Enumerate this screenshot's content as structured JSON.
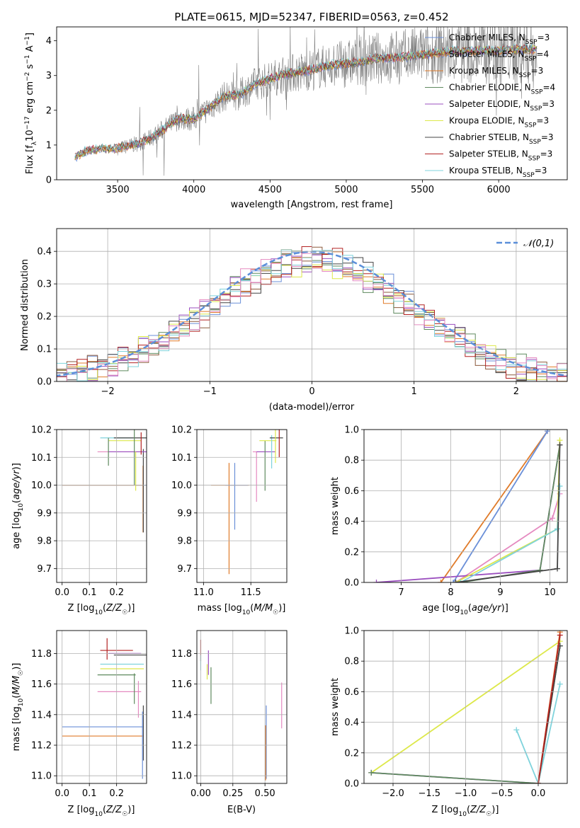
{
  "figure_title": "PLATE=0615, MJD=52347, FIBERID=0563, z=0.452",
  "colors": {
    "Chabrier MILES": "#6a8fd8",
    "Salpeter MILES": "#8c5a3c",
    "Kroupa MILES": "#e07b2a",
    "Chabrier ELODIE": "#5f8a5f",
    "Salpeter ELODIE": "#9b4fbf",
    "Kroupa ELODIE": "#dde84a",
    "Chabrier STELIB": "#444444",
    "Salpeter STELIB": "#b22222",
    "Kroupa STELIB": "#7fd3dc",
    "data": "#808080",
    "gaussian": "#5b8fd9",
    "pink": "#e58ac0"
  },
  "chart_data": [
    {
      "id": "spectrum",
      "type": "line",
      "xlabel": "wavelength [Angstrom, rest frame]",
      "ylabel": "Flux [f_λ 10^-17 erg cm^-2 s^-1 A^-1]",
      "xlim": [
        3100,
        6450
      ],
      "ylim": [
        0,
        4.4
      ],
      "xticks": [
        3500,
        4000,
        4500,
        5000,
        5500,
        6000
      ],
      "yticks": [
        0,
        1,
        2,
        3,
        4
      ],
      "model_anchor_points": {
        "x": [
          3220,
          3300,
          3400,
          3500,
          3600,
          3700,
          3800,
          3900,
          4000,
          4100,
          4200,
          4300,
          4400,
          4500,
          4600,
          4700,
          4800,
          4900,
          5000,
          5100,
          5200,
          5300,
          5400,
          5500,
          5600,
          5700,
          5800,
          5900,
          6000,
          6100,
          6200,
          6250
        ],
        "y": [
          0.65,
          0.85,
          0.9,
          0.9,
          1.0,
          1.15,
          1.45,
          1.75,
          1.75,
          2.05,
          2.4,
          2.45,
          2.75,
          2.9,
          3.05,
          3.1,
          3.2,
          3.3,
          3.35,
          3.4,
          3.5,
          3.5,
          3.55,
          3.6,
          3.65,
          3.7,
          3.7,
          3.72,
          3.72,
          3.75,
          3.75,
          3.75
        ]
      },
      "legend": [
        {
          "label": "Chabrier MILES, N",
          "sub": "SSP",
          "val": "=3"
        },
        {
          "label": "Salpeter MILES, N",
          "sub": "SSP",
          "val": "=4"
        },
        {
          "label": "Kroupa MILES, N",
          "sub": "SSP",
          "val": "=3"
        },
        {
          "label": "Chabrier ELODIE, N",
          "sub": "SSP",
          "val": "=4"
        },
        {
          "label": "Salpeter ELODIE, N",
          "sub": "SSP",
          "val": "=3"
        },
        {
          "label": "Kroupa ELODIE, N",
          "sub": "SSP",
          "val": "=3"
        },
        {
          "label": "Chabrier STELIB, N",
          "sub": "SSP",
          "val": "=3"
        },
        {
          "label": "Salpeter STELIB, N",
          "sub": "SSP",
          "val": "=3"
        },
        {
          "label": "Kroupa STELIB, N",
          "sub": "SSP",
          "val": "=3"
        }
      ],
      "legend_position": "right"
    },
    {
      "id": "residuals",
      "type": "bar",
      "xlabel": "(data-model)/error",
      "ylabel": "Normed distribution",
      "xlim": [
        -2.5,
        2.5
      ],
      "ylim": [
        0,
        0.47
      ],
      "xticks": [
        -2,
        -1,
        0,
        1,
        2
      ],
      "yticks": [
        0.0,
        0.1,
        0.2,
        0.3,
        0.4
      ],
      "bin_width": 0.1,
      "legend": "𝒩(0,1)",
      "legend_position": "top-right",
      "gaussian_sigma": 1
    },
    {
      "id": "age_vs_Z",
      "type": "scatter",
      "xlabel": "Z [log10(Z/Z☉)]",
      "ylabel": "age  [log10(age/yr)]",
      "xlim": [
        -0.02,
        0.31
      ],
      "ylim": [
        9.65,
        10.2
      ],
      "xticks": [
        0.0,
        0.1,
        0.2
      ],
      "yticks": [
        9.7,
        9.8,
        9.9,
        10.0,
        10.1,
        10.2
      ],
      "points": [
        {
          "x": 0.16,
          "y": 10.0,
          "xerr": 0.16,
          "yerr": 0.0,
          "c": "Chabrier MILES"
        },
        {
          "x": 0.15,
          "y": 10.0,
          "xerr": 0.15,
          "yerr": 0.0,
          "c": "Kroupa MILES"
        },
        {
          "x": 0.297,
          "y": 9.95,
          "xerr": 0.0,
          "yerr": 0.12,
          "c": "Kroupa MILES"
        },
        {
          "x": 0.298,
          "y": 9.98,
          "xerr": 0.0,
          "yerr": 0.15,
          "c": "Chabrier STELIB"
        },
        {
          "x": 0.2,
          "y": 10.17,
          "xerr": 0.06,
          "yerr": 0.0,
          "c": "Kroupa STELIB"
        },
        {
          "x": 0.25,
          "y": 10.17,
          "xerr": 0.06,
          "yerr": 0.0,
          "c": "Chabrier STELIB"
        },
        {
          "x": 0.23,
          "y": 10.16,
          "xerr": 0.06,
          "yerr": 0.0,
          "c": "Kroupa ELODIE"
        },
        {
          "x": 0.21,
          "y": 10.12,
          "xerr": 0.08,
          "yerr": 0.0,
          "c": "pink"
        },
        {
          "x": 0.24,
          "y": 10.12,
          "xerr": 0.07,
          "yerr": 0.0,
          "c": "Salpeter ELODIE"
        },
        {
          "x": 0.17,
          "y": 10.12,
          "xerr": 0.0,
          "yerr": 0.05,
          "c": "Chabrier ELODIE"
        },
        {
          "x": 0.265,
          "y": 10.1,
          "xerr": 0.0,
          "yerr": 0.1,
          "c": "Chabrier ELODIE"
        },
        {
          "x": 0.27,
          "y": 10.05,
          "xerr": 0.0,
          "yerr": 0.07,
          "c": "Kroupa ELODIE"
        },
        {
          "x": 0.29,
          "y": 10.15,
          "xerr": 0.0,
          "yerr": 0.04,
          "c": "Salpeter STELIB"
        }
      ]
    },
    {
      "id": "age_vs_mass",
      "type": "scatter",
      "xlabel": "mass [log10(M/M☉)]",
      "ylabel": "",
      "xlim": [
        10.93,
        11.88
      ],
      "ylim": [
        9.65,
        10.2
      ],
      "xticks": [
        11.0,
        11.5
      ],
      "yticks": [
        9.7,
        9.8,
        9.9,
        10.0,
        10.1,
        10.2
      ],
      "points": [
        {
          "x": 11.28,
          "y": 10.0,
          "xerr": 0.2,
          "yerr": 0.0,
          "c": "Kroupa MILES"
        },
        {
          "x": 11.27,
          "y": 9.88,
          "xerr": 0.0,
          "yerr": 0.2,
          "c": "Kroupa MILES"
        },
        {
          "x": 11.35,
          "y": 10.0,
          "xerr": 0.12,
          "yerr": 0.0,
          "c": "Chabrier MILES"
        },
        {
          "x": 11.33,
          "y": 9.96,
          "xerr": 0.0,
          "yerr": 0.12,
          "c": "Chabrier MILES"
        },
        {
          "x": 11.56,
          "y": 10.03,
          "xerr": 0.0,
          "yerr": 0.09,
          "c": "pink"
        },
        {
          "x": 11.58,
          "y": 10.12,
          "xerr": 0.06,
          "yerr": 0.0,
          "c": "pink"
        },
        {
          "x": 11.66,
          "y": 10.12,
          "xerr": 0.1,
          "yerr": 0.0,
          "c": "Salpeter ELODIE"
        },
        {
          "x": 11.65,
          "y": 10.07,
          "xerr": 0.0,
          "yerr": 0.09,
          "c": "Chabrier ELODIE"
        },
        {
          "x": 11.68,
          "y": 10.16,
          "xerr": 0.09,
          "yerr": 0.0,
          "c": "Kroupa ELODIE"
        },
        {
          "x": 11.72,
          "y": 10.12,
          "xerr": 0.0,
          "yerr": 0.06,
          "c": "Kroupa STELIB"
        },
        {
          "x": 11.77,
          "y": 10.17,
          "xerr": 0.07,
          "yerr": 0.0,
          "c": "Chabrier STELIB"
        },
        {
          "x": 11.8,
          "y": 10.15,
          "xerr": 0.0,
          "yerr": 0.05,
          "c": "Salpeter STELIB"
        },
        {
          "x": 11.76,
          "y": 10.14,
          "xerr": 0.0,
          "yerr": 0.06,
          "c": "Kroupa ELODIE"
        }
      ]
    },
    {
      "id": "weight_vs_age",
      "type": "line",
      "xlabel": "age  [log10(age/yr)]",
      "ylabel": "mass weight",
      "xlim": [
        6.25,
        10.35
      ],
      "ylim": [
        0,
        1.0
      ],
      "xticks": [
        7,
        8,
        9,
        10
      ],
      "yticks": [
        0.0,
        0.2,
        0.4,
        0.6,
        0.8,
        1.0
      ],
      "lines": [
        {
          "c": "Kroupa MILES",
          "x": [
            7.8,
            9.95
          ],
          "y": [
            0.0,
            0.99
          ]
        },
        {
          "c": "Chabrier MILES",
          "x": [
            8.05,
            9.95
          ],
          "y": [
            0.0,
            0.99
          ]
        },
        {
          "c": "pink",
          "x": [
            8.1,
            10.05,
            10.2
          ],
          "y": [
            0.0,
            0.42,
            0.58
          ]
        },
        {
          "c": "Salpeter ELODIE",
          "x": [
            6.5,
            9.8,
            10.2
          ],
          "y": [
            0.0,
            0.08,
            0.9
          ]
        },
        {
          "c": "Chabrier ELODIE",
          "x": [
            8.2,
            9.8,
            10.2
          ],
          "y": [
            0.0,
            0.08,
            0.9
          ]
        },
        {
          "c": "Kroupa ELODIE",
          "x": [
            8.1,
            10.15,
            10.2
          ],
          "y": [
            0.0,
            0.35,
            0.93
          ]
        },
        {
          "c": "Kroupa STELIB",
          "x": [
            8.2,
            10.15,
            10.2
          ],
          "y": [
            0.0,
            0.35,
            0.63
          ]
        },
        {
          "c": "Chabrier STELIB",
          "x": [
            8.1,
            10.15,
            10.2
          ],
          "y": [
            0.0,
            0.09,
            0.9
          ]
        }
      ]
    },
    {
      "id": "mass_vs_Z",
      "type": "scatter",
      "xlabel": "Z [log10(Z/Z☉)]",
      "ylabel": "mass [log10(M/M☉)]",
      "xlim": [
        -0.02,
        0.31
      ],
      "ylim": [
        10.95,
        11.95
      ],
      "xticks": [
        0.0,
        0.1,
        0.2
      ],
      "yticks": [
        11.0,
        11.2,
        11.4,
        11.6,
        11.8
      ],
      "points": [
        {
          "x": 0.15,
          "y": 11.32,
          "xerr": 0.15,
          "yerr": 0.0,
          "c": "Chabrier MILES"
        },
        {
          "x": 0.15,
          "y": 11.26,
          "xerr": 0.15,
          "yerr": 0.0,
          "c": "Kroupa MILES"
        },
        {
          "x": 0.298,
          "y": 11.28,
          "xerr": 0.0,
          "yerr": 0.18,
          "c": "Chabrier STELIB"
        },
        {
          "x": 0.295,
          "y": 11.2,
          "xerr": 0.0,
          "yerr": 0.22,
          "c": "Chabrier MILES"
        },
        {
          "x": 0.2,
          "y": 11.82,
          "xerr": 0.06,
          "yerr": 0.0,
          "c": "Salpeter STELIB"
        },
        {
          "x": 0.165,
          "y": 11.83,
          "xerr": 0.0,
          "yerr": 0.07,
          "c": "Salpeter STELIB"
        },
        {
          "x": 0.25,
          "y": 11.79,
          "xerr": 0.06,
          "yerr": 0.0,
          "c": "Chabrier STELIB"
        },
        {
          "x": 0.23,
          "y": 11.8,
          "xerr": 0.06,
          "yerr": 0.0,
          "c": "Salpeter ELODIE"
        },
        {
          "x": 0.22,
          "y": 11.73,
          "xerr": 0.08,
          "yerr": 0.0,
          "c": "Kroupa STELIB"
        },
        {
          "x": 0.22,
          "y": 11.7,
          "xerr": 0.08,
          "yerr": 0.0,
          "c": "Kroupa ELODIE"
        },
        {
          "x": 0.2,
          "y": 11.66,
          "xerr": 0.07,
          "yerr": 0.0,
          "c": "Chabrier ELODIE"
        },
        {
          "x": 0.21,
          "y": 11.55,
          "xerr": 0.08,
          "yerr": 0.0,
          "c": "pink"
        },
        {
          "x": 0.265,
          "y": 11.57,
          "xerr": 0.0,
          "yerr": 0.1,
          "c": "Chabrier ELODIE"
        },
        {
          "x": 0.28,
          "y": 11.5,
          "xerr": 0.0,
          "yerr": 0.12,
          "c": "pink"
        }
      ]
    },
    {
      "id": "mass_vs_EBV",
      "type": "scatter",
      "xlabel": "E(B-V)",
      "ylabel": "",
      "xlim": [
        -0.03,
        0.67
      ],
      "ylim": [
        10.95,
        11.95
      ],
      "xticks": [
        0.0,
        0.25,
        0.5
      ],
      "yticks": [
        11.0,
        11.2,
        11.4,
        11.6,
        11.8
      ],
      "points": [
        {
          "x": 0.0,
          "y": 11.82,
          "xerr": 0.0,
          "yerr": 0.07,
          "c": "Salpeter STELIB"
        },
        {
          "x": 0.0,
          "y": 11.74,
          "xerr": 0.0,
          "yerr": 0.05,
          "c": "Kroupa STELIB"
        },
        {
          "x": 0.06,
          "y": 11.74,
          "xerr": 0.0,
          "yerr": 0.08,
          "c": "Salpeter ELODIE"
        },
        {
          "x": 0.08,
          "y": 11.59,
          "xerr": 0.0,
          "yerr": 0.12,
          "c": "Chabrier ELODIE"
        },
        {
          "x": 0.05,
          "y": 11.68,
          "xerr": 0.0,
          "yerr": 0.05,
          "c": "Kroupa ELODIE"
        },
        {
          "x": 0.51,
          "y": 11.22,
          "xerr": 0.0,
          "yerr": 0.24,
          "c": "Chabrier MILES"
        },
        {
          "x": 0.505,
          "y": 11.15,
          "xerr": 0.0,
          "yerr": 0.18,
          "c": "Kroupa MILES"
        },
        {
          "x": 0.63,
          "y": 11.46,
          "xerr": 0.0,
          "yerr": 0.15,
          "c": "pink"
        }
      ]
    },
    {
      "id": "weight_vs_Z",
      "type": "line",
      "xlabel": "Z [log10(Z/Z☉)]",
      "ylabel": "mass weight",
      "xlim": [
        -2.4,
        0.4
      ],
      "ylim": [
        0,
        1.0
      ],
      "xticks": [
        -2.0,
        -1.5,
        -1.0,
        -0.5,
        0.0
      ],
      "yticks": [
        0.0,
        0.2,
        0.4,
        0.6,
        0.8,
        1.0
      ],
      "lines": [
        {
          "c": "Kroupa ELODIE",
          "x": [
            -2.3,
            0.3
          ],
          "y": [
            0.07,
            0.93
          ]
        },
        {
          "c": "Salpeter ELODIE",
          "x": [
            -2.3,
            0.0
          ],
          "y": [
            0.07,
            0.0
          ]
        },
        {
          "c": "Chabrier ELODIE",
          "x": [
            -2.3,
            0.0,
            0.3
          ],
          "y": [
            0.07,
            0.0,
            0.9
          ]
        },
        {
          "c": "Kroupa STELIB",
          "x": [
            -0.3,
            0.0,
            0.3
          ],
          "y": [
            0.35,
            0.0,
            0.65
          ]
        },
        {
          "c": "Chabrier STELIB",
          "x": [
            0.0,
            0.3
          ],
          "y": [
            0.0,
            0.9
          ]
        },
        {
          "c": "Kroupa MILES",
          "x": [
            0.0,
            0.3
          ],
          "y": [
            0.0,
            0.99
          ]
        },
        {
          "c": "Salpeter STELIB",
          "x": [
            0.0,
            0.3
          ],
          "y": [
            0.0,
            0.97
          ]
        }
      ]
    }
  ]
}
